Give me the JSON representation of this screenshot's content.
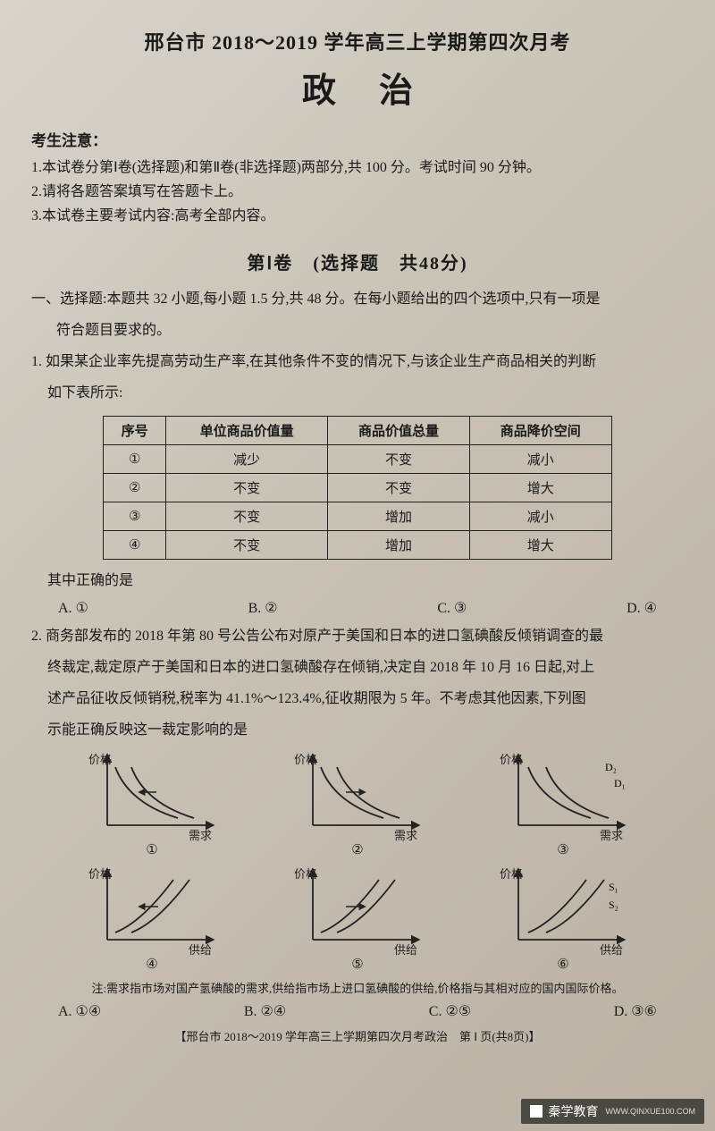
{
  "header": {
    "line1": "邢台市 2018～2019 学年高三上学期第四次月考",
    "line2": "政治"
  },
  "notice": {
    "title": "考生注意：",
    "items": [
      "1.本试卷分第Ⅰ卷(选择题)和第Ⅱ卷(非选择题)两部分,共 100 分。考试时间 90 分钟。",
      "2.请将各题答案填写在答题卡上。",
      "3.本试卷主要考试内容:高考全部内容。"
    ]
  },
  "section1": {
    "header": "第Ⅰ卷　(选择题　共48分)",
    "instruction_l1": "一、选择题:本题共 32 小题,每小题 1.5 分,共 48 分。在每小题给出的四个选项中,只有一项是",
    "instruction_l2": "符合题目要求的。"
  },
  "q1": {
    "text_l1": "1. 如果某企业率先提高劳动生产率,在其他条件不变的情况下,与该企业生产商品相关的判断",
    "text_l2": "如下表所示:",
    "table": {
      "columns": [
        "序号",
        "单位商品价值量",
        "商品价值总量",
        "商品降价空间"
      ],
      "rows": [
        [
          "①",
          "减少",
          "不变",
          "减小"
        ],
        [
          "②",
          "不变",
          "不变",
          "增大"
        ],
        [
          "③",
          "不变",
          "增加",
          "减小"
        ],
        [
          "④",
          "不变",
          "增加",
          "增大"
        ]
      ]
    },
    "followup": "其中正确的是",
    "options": {
      "A": "A. ①",
      "B": "B. ②",
      "C": "C. ③",
      "D": "D. ④"
    }
  },
  "q2": {
    "text_l1": "2. 商务部发布的 2018 年第 80 号公告公布对原产于美国和日本的进口氢碘酸反倾销调查的最",
    "text_l2": "终裁定,裁定原产于美国和日本的进口氢碘酸存在倾销,决定自 2018 年 10 月 16 日起,对上",
    "text_l3": "述产品征收反倾销税,税率为 41.1%～123.4%,征收期限为 5 年。不考虑其他因素,下列图",
    "text_l4": "示能正确反映这一裁定影响的是",
    "chart_style": {
      "axis_color": "#222222",
      "curve_color": "#222222",
      "stroke_width": 1.8,
      "label_fontsize": 13,
      "y_label": "价格",
      "x_label_demand": "需求",
      "x_label_supply": "供给",
      "width": 150,
      "height": 105
    },
    "charts_row1": [
      {
        "num": "①",
        "x_label": "需求",
        "type": "demand_shift_left"
      },
      {
        "num": "②",
        "x_label": "需求",
        "type": "demand_shift_right"
      },
      {
        "num": "③",
        "x_label": "需求",
        "type": "demand_two_curves",
        "labels": [
          "D₂",
          "D₁"
        ]
      }
    ],
    "charts_row2": [
      {
        "num": "④",
        "x_label": "供给",
        "type": "supply_shift_left"
      },
      {
        "num": "⑤",
        "x_label": "供给",
        "type": "supply_shift_right"
      },
      {
        "num": "⑥",
        "x_label": "供给",
        "type": "supply_two_curves",
        "labels": [
          "S₁",
          "S₂"
        ]
      }
    ],
    "footnote": "注:需求指市场对国产氢碘酸的需求,供给指市场上进口氢碘酸的供给,价格指与其相对应的国内国际价格。",
    "options": {
      "A": "A. ①④",
      "B": "B. ②④",
      "C": "C. ②⑤",
      "D": "D. ③⑥"
    }
  },
  "footer": {
    "text": "【邢台市 2018～2019 学年高三上学期第四次月考政治　第 Ⅰ 页(共8页)】"
  },
  "watermark": {
    "brand": "秦学教育",
    "sub": "WWW.QINXUE100.COM"
  }
}
